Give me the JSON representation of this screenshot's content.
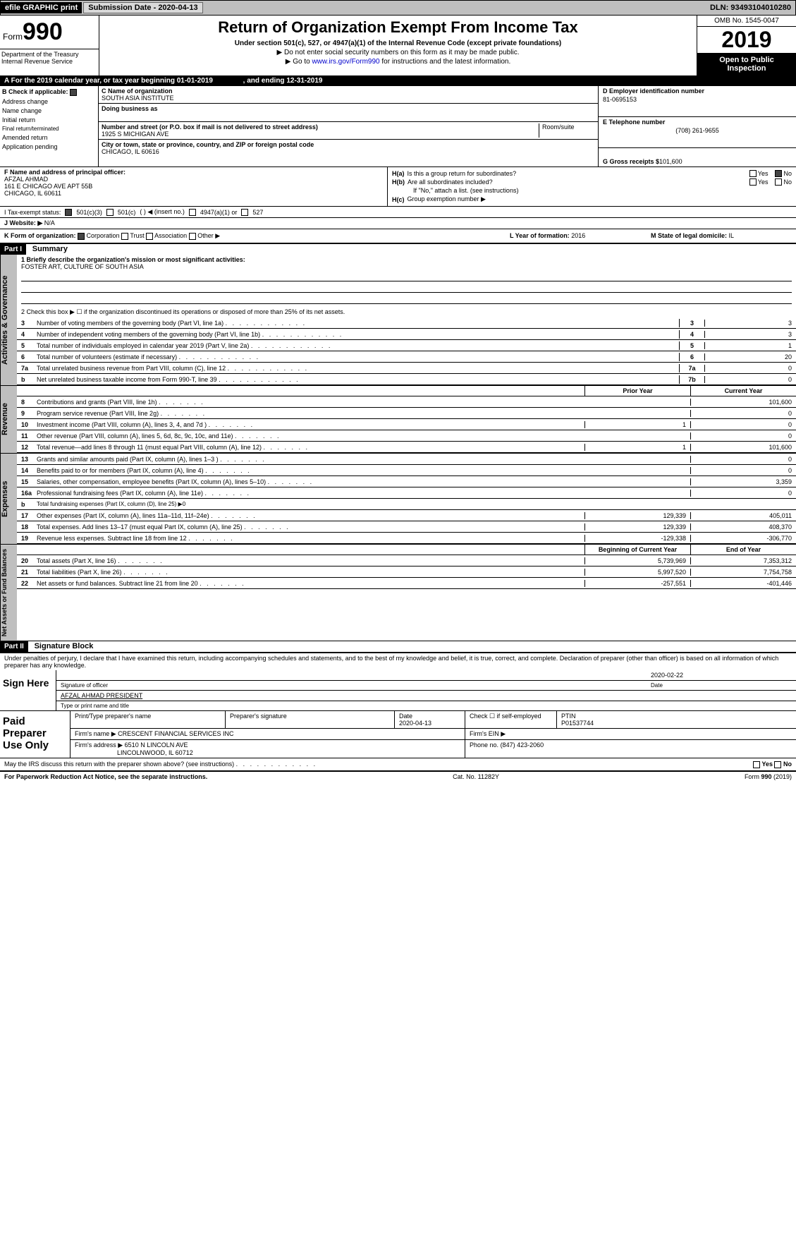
{
  "topbar": {
    "efile": "efile GRAPHIC print",
    "submission_label": "Submission Date - 2020-04-13",
    "dln": "DLN: 93493104010280"
  },
  "header": {
    "form_word": "Form",
    "form_num": "990",
    "title": "Return of Organization Exempt From Income Tax",
    "subtitle": "Under section 501(c), 527, or 4947(a)(1) of the Internal Revenue Code (except private foundations)",
    "arrow1": "▶ Do not enter social security numbers on this form as it may be made public.",
    "arrow2_pre": "▶ Go to ",
    "arrow2_link": "www.irs.gov/Form990",
    "arrow2_post": " for instructions and the latest information.",
    "omb": "OMB No. 1545-0047",
    "year": "2019",
    "open": "Open to Public Inspection",
    "dept": "Department of the Treasury",
    "irs": "Internal Revenue Service"
  },
  "period": {
    "text_a": "A   For the 2019 calendar year, or tax year beginning 01-01-2019",
    "text_b": ", and ending 12-31-2019"
  },
  "boxB": {
    "label": "B Check if applicable:",
    "items": [
      "Address change",
      "Name change",
      "Initial return",
      "Final return/terminated",
      "Amended return",
      "Application pending"
    ]
  },
  "boxC": {
    "name_label": "C Name of organization",
    "name": "SOUTH ASIA INSTITUTE",
    "dba_label": "Doing business as",
    "street_label": "Number and street (or P.O. box if mail is not delivered to street address)",
    "street": "1925 S MICHIGAN AVE",
    "room_label": "Room/suite",
    "city_label": "City or town, state or province, country, and ZIP or foreign postal code",
    "city": "CHICAGO, IL  60616"
  },
  "boxD": {
    "label": "D Employer identification number",
    "ein": "81-0695153"
  },
  "boxE": {
    "label": "E Telephone number",
    "phone": "(708) 261-9655"
  },
  "boxG": {
    "label": "G Gross receipts $",
    "val": "101,600"
  },
  "boxF": {
    "label": "F Name and address of principal officer:",
    "name": "AFZAL AHMAD",
    "addr1": "161 E CHICAGO AVE APT 55B",
    "addr2": "CHICAGO, IL  60611"
  },
  "boxH": {
    "ha_label": "H(a)",
    "ha_text": "Is this a group return for subordinates?",
    "hb_label": "H(b)",
    "hb_text": "Are all subordinates included?",
    "hb_note": "If \"No,\" attach a list. (see instructions)",
    "hc_label": "H(c)",
    "hc_text": "Group exemption number ▶",
    "yes": "Yes",
    "no": "No"
  },
  "boxI": {
    "label": "I   Tax-exempt status:",
    "opt1": "501(c)(3)",
    "opt2": "501(c)",
    "opt2_paren": "(  ) ◀ (insert no.)",
    "opt3": "4947(a)(1) or",
    "opt4": "527"
  },
  "boxJ": {
    "label": "J   Website: ▶",
    "val": "N/A"
  },
  "boxK": {
    "label": "K Form of organization:",
    "opts": [
      "Corporation",
      "Trust",
      "Association",
      "Other ▶"
    ]
  },
  "boxL": {
    "label": "L Year of formation:",
    "val": "2016"
  },
  "boxM": {
    "label": "M State of legal domicile:",
    "val": "IL"
  },
  "part1": {
    "tab": "Part I",
    "title": "Summary",
    "line1_label": "1  Briefly describe the organization's mission or most significant activities:",
    "line1_val": "FOSTER ART, CULTURE OF SOUTH ASIA",
    "line2": "2   Check this box ▶ ☐ if the organization discontinued its operations or disposed of more than 25% of its net assets.",
    "sidebar_gov": "Activities & Governance",
    "sidebar_rev": "Revenue",
    "sidebar_exp": "Expenses",
    "sidebar_net": "Net Assets or Fund Balances",
    "prior_year": "Prior Year",
    "current_year": "Current Year",
    "begin_year": "Beginning of Current Year",
    "end_year": "End of Year",
    "lines_gov": [
      {
        "n": "3",
        "d": "Number of voting members of the governing body (Part VI, line 1a)",
        "box": "3",
        "v": "3"
      },
      {
        "n": "4",
        "d": "Number of independent voting members of the governing body (Part VI, line 1b)",
        "box": "4",
        "v": "3"
      },
      {
        "n": "5",
        "d": "Total number of individuals employed in calendar year 2019 (Part V, line 2a)",
        "box": "5",
        "v": "1"
      },
      {
        "n": "6",
        "d": "Total number of volunteers (estimate if necessary)",
        "box": "6",
        "v": "20"
      },
      {
        "n": "7a",
        "d": "Total unrelated business revenue from Part VIII, column (C), line 12",
        "box": "7a",
        "v": "0"
      },
      {
        "n": "b",
        "d": "Net unrelated business taxable income from Form 990-T, line 39",
        "box": "7b",
        "v": "0"
      }
    ],
    "lines_rev": [
      {
        "n": "8",
        "d": "Contributions and grants (Part VIII, line 1h)",
        "p": "",
        "c": "101,600"
      },
      {
        "n": "9",
        "d": "Program service revenue (Part VIII, line 2g)",
        "p": "",
        "c": "0"
      },
      {
        "n": "10",
        "d": "Investment income (Part VIII, column (A), lines 3, 4, and 7d )",
        "p": "1",
        "c": "0"
      },
      {
        "n": "11",
        "d": "Other revenue (Part VIII, column (A), lines 5, 6d, 8c, 9c, 10c, and 11e)",
        "p": "",
        "c": "0"
      },
      {
        "n": "12",
        "d": "Total revenue—add lines 8 through 11 (must equal Part VIII, column (A), line 12)",
        "p": "1",
        "c": "101,600"
      }
    ],
    "lines_exp": [
      {
        "n": "13",
        "d": "Grants and similar amounts paid (Part IX, column (A), lines 1–3 )",
        "p": "",
        "c": "0"
      },
      {
        "n": "14",
        "d": "Benefits paid to or for members (Part IX, column (A), line 4)",
        "p": "",
        "c": "0"
      },
      {
        "n": "15",
        "d": "Salaries, other compensation, employee benefits (Part IX, column (A), lines 5–10)",
        "p": "",
        "c": "3,359"
      },
      {
        "n": "16a",
        "d": "Professional fundraising fees (Part IX, column (A), line 11e)",
        "p": "",
        "c": "0"
      },
      {
        "n": "b",
        "d": "Total fundraising expenses (Part IX, column (D), line 25) ▶0",
        "p": "—",
        "c": "—"
      },
      {
        "n": "17",
        "d": "Other expenses (Part IX, column (A), lines 11a–11d, 11f–24e)",
        "p": "129,339",
        "c": "405,011"
      },
      {
        "n": "18",
        "d": "Total expenses. Add lines 13–17 (must equal Part IX, column (A), line 25)",
        "p": "129,339",
        "c": "408,370"
      },
      {
        "n": "19",
        "d": "Revenue less expenses. Subtract line 18 from line 12",
        "p": "-129,338",
        "c": "-306,770"
      }
    ],
    "lines_net": [
      {
        "n": "20",
        "d": "Total assets (Part X, line 16)",
        "p": "5,739,969",
        "c": "7,353,312"
      },
      {
        "n": "21",
        "d": "Total liabilities (Part X, line 26)",
        "p": "5,997,520",
        "c": "7,754,758"
      },
      {
        "n": "22",
        "d": "Net assets or fund balances. Subtract line 21 from line 20",
        "p": "-257,551",
        "c": "-401,446"
      }
    ]
  },
  "part2": {
    "tab": "Part II",
    "title": "Signature Block",
    "declare": "Under penalties of perjury, I declare that I have examined this return, including accompanying schedules and statements, and to the best of my knowledge and belief, it is true, correct, and complete. Declaration of preparer (other than officer) is based on all information of which preparer has any knowledge.",
    "sign_here": "Sign Here",
    "sig_officer": "Signature of officer",
    "sig_date": "2020-02-22",
    "date_label": "Date",
    "officer_name": "AFZAL AHMAD  PRESIDENT",
    "name_title_label": "Type or print name and title",
    "paid_label": "Paid Preparer Use Only",
    "prep_name_label": "Print/Type preparer's name",
    "prep_sig_label": "Preparer's signature",
    "prep_date_label": "Date",
    "prep_date": "2020-04-13",
    "self_emp": "Check ☐ if self-employed",
    "ptin_label": "PTIN",
    "ptin": "P01537744",
    "firm_name_label": "Firm's name    ▶",
    "firm_name": "CRESCENT FINANCIAL SERVICES INC",
    "firm_ein_label": "Firm's EIN ▶",
    "firm_addr_label": "Firm's address ▶",
    "firm_addr1": "6510 N LINCOLN AVE",
    "firm_addr2": "LINCOLNWOOD, IL  60712",
    "firm_phone_label": "Phone no.",
    "firm_phone": "(847) 423-2060",
    "discuss": "May the IRS discuss this return with the preparer shown above? (see instructions)"
  },
  "footer": {
    "pra": "For Paperwork Reduction Act Notice, see the separate instructions.",
    "cat": "Cat. No. 11282Y",
    "form": "Form 990 (2019)"
  }
}
